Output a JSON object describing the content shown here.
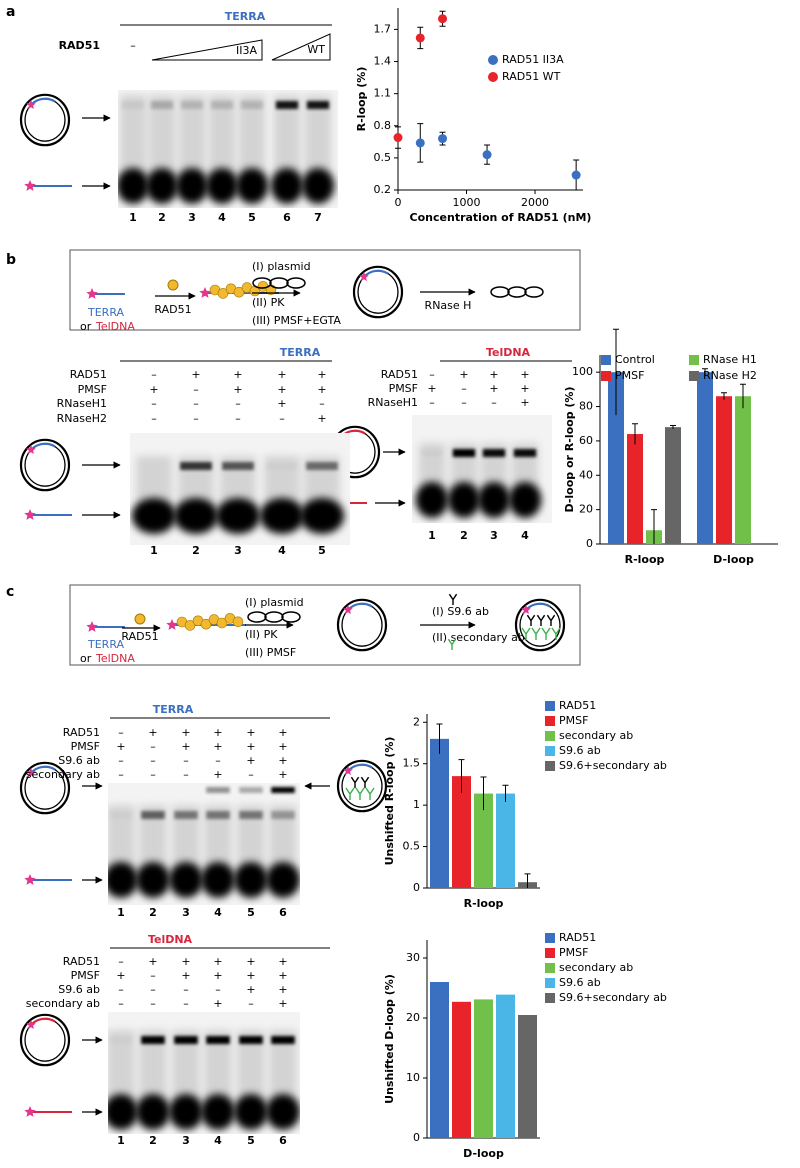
{
  "panel_labels": [
    "a",
    "b",
    "c"
  ],
  "schematic_b": {
    "terra": "TERRA",
    "or": "or",
    "teldna": "TelDNA",
    "rad51": "RAD51",
    "steps": [
      "(I) plasmid",
      "(II) PK",
      "(III) PMSF+EGTA"
    ],
    "rnase": "RNase H"
  },
  "schematic_c": {
    "terra": "TERRA",
    "or": "or",
    "teldna": "TelDNA",
    "rad51": "RAD51",
    "steps": [
      "(I) plasmid",
      "(II) PK",
      "(III) PMSF"
    ],
    "ab_steps": [
      "(I) S9.6 ab",
      "(II) secondary ab"
    ]
  },
  "gels": [
    {
      "title": "TERRA",
      "title_color": "#3b6fc0",
      "rows": [
        {
          "label": "RAD51",
          "signs": [
            "–"
          ]
        }
      ],
      "ramps": [
        "II3A",
        "WT"
      ],
      "lanes": [
        1,
        2,
        3,
        4,
        5,
        6,
        7
      ]
    },
    {
      "title": "TERRA",
      "title_color": "#3b6fc0",
      "rows": [
        {
          "label": "RAD51",
          "signs": [
            "–",
            "+",
            "+",
            "+",
            "+"
          ]
        },
        {
          "label": "PMSF",
          "signs": [
            "+",
            "–",
            "+",
            "+",
            "+"
          ]
        },
        {
          "label": "RNaseH1",
          "signs": [
            "–",
            "–",
            "–",
            "+",
            "–"
          ]
        },
        {
          "label": "RNaseH2",
          "signs": [
            "–",
            "–",
            "–",
            "–",
            "+"
          ]
        }
      ],
      "lanes": [
        1,
        2,
        3,
        4,
        5
      ]
    },
    {
      "title": "TelDNA",
      "title_color": "#d7263d",
      "rows": [
        {
          "label": "RAD51",
          "signs": [
            "–",
            "+",
            "+",
            "+"
          ]
        },
        {
          "label": "PMSF",
          "signs": [
            "+",
            "–",
            "+",
            "+"
          ]
        },
        {
          "label": "RNaseH1",
          "signs": [
            "–",
            "–",
            "–",
            "+"
          ]
        }
      ],
      "lanes": [
        1,
        2,
        3,
        4
      ]
    },
    {
      "title": "TERRA",
      "title_color": "#3b6fc0",
      "rows": [
        {
          "label": "RAD51",
          "signs": [
            "–",
            "+",
            "+",
            "+",
            "+",
            "+"
          ]
        },
        {
          "label": "PMSF",
          "signs": [
            "+",
            "–",
            "+",
            "+",
            "+",
            "+"
          ]
        },
        {
          "label": "S9.6 ab",
          "signs": [
            "–",
            "–",
            "–",
            "–",
            "+",
            "+"
          ]
        },
        {
          "label": "secondary ab",
          "signs": [
            "–",
            "–",
            "–",
            "+",
            "–",
            "+"
          ]
        }
      ],
      "lanes": [
        1,
        2,
        3,
        4,
        5,
        6
      ]
    },
    {
      "title": "TelDNA",
      "title_color": "#d7263d",
      "rows": [
        {
          "label": "RAD51",
          "signs": [
            "–",
            "+",
            "+",
            "+",
            "+",
            "+"
          ]
        },
        {
          "label": "PMSF",
          "signs": [
            "+",
            "–",
            "+",
            "+",
            "+",
            "+"
          ]
        },
        {
          "label": "S9.6 ab",
          "signs": [
            "–",
            "–",
            "–",
            "–",
            "+",
            "+"
          ]
        },
        {
          "label": "secondary ab",
          "signs": [
            "–",
            "–",
            "–",
            "+",
            "–",
            "+"
          ]
        }
      ],
      "lanes": [
        1,
        2,
        3,
        4,
        5,
        6
      ]
    }
  ],
  "chart_data": [
    {
      "type": "scatter",
      "xlabel": "Concentration of RAD51 (nM)",
      "ylabel": "R-loop (%)",
      "xlim": [
        0,
        2700
      ],
      "xticks": [
        0,
        1000,
        2000
      ],
      "ylim": [
        0.2,
        1.9
      ],
      "yticks": [
        0.2,
        0.5,
        0.8,
        1.1,
        1.4,
        1.7
      ],
      "legend": "upper right",
      "series": [
        {
          "name": "RAD51 II3A",
          "color": "#3b6fc0",
          "x": [
            325,
            650,
            1300,
            2600
          ],
          "values": [
            0.64,
            0.68,
            0.53,
            0.34
          ],
          "errors": [
            0.18,
            0.06,
            0.09,
            0.14
          ]
        },
        {
          "name": "RAD51 WT",
          "color": "#e8232a",
          "x": [
            0,
            325,
            650
          ],
          "values": [
            0.69,
            1.62,
            1.8
          ],
          "errors": [
            0.1,
            0.1,
            0.07
          ]
        }
      ]
    },
    {
      "type": "bar",
      "categories": [
        "R-loop",
        "D-loop"
      ],
      "ylabel": "D-loop or R-loop (%)",
      "ylim": [
        0,
        110
      ],
      "yticks": [
        0,
        20,
        40,
        60,
        80,
        100
      ],
      "legend": "top",
      "series": [
        {
          "name": "Control",
          "color": "#3b6fc0",
          "values": [
            100,
            100
          ],
          "errors": [
            25,
            2
          ]
        },
        {
          "name": "PMSF",
          "color": "#e8232a",
          "values": [
            64,
            86
          ],
          "errors": [
            6,
            2
          ]
        },
        {
          "name": "RNase H1",
          "color": "#70c04a",
          "values": [
            8,
            86
          ],
          "errors": [
            12,
            7
          ]
        },
        {
          "name": "RNase H2",
          "color": "#666666",
          "values": [
            68,
            null
          ],
          "errors": [
            1,
            null
          ]
        }
      ]
    },
    {
      "type": "bar",
      "categories": [
        "R-loop"
      ],
      "ylabel": "Unshifted R-loop (%)",
      "ylim": [
        0,
        2.1
      ],
      "yticks": [
        0,
        0.5,
        1,
        1.5,
        2
      ],
      "legend": "right",
      "series": [
        {
          "name": "RAD51",
          "color": "#3b6fc0",
          "values": [
            1.8
          ],
          "errors": [
            0.18
          ]
        },
        {
          "name": "PMSF",
          "color": "#e8232a",
          "values": [
            1.35
          ],
          "errors": [
            0.2
          ]
        },
        {
          "name": "secondary ab",
          "color": "#70c04a",
          "values": [
            1.14
          ],
          "errors": [
            0.2
          ]
        },
        {
          "name": "S9.6 ab",
          "color": "#4ab6e8",
          "values": [
            1.14
          ],
          "errors": [
            0.1
          ]
        },
        {
          "name": "S9.6+secondary ab",
          "color": "#666666",
          "values": [
            0.07
          ],
          "errors": [
            0.1
          ]
        }
      ]
    },
    {
      "type": "bar",
      "categories": [
        "D-loop"
      ],
      "ylabel": "Unshifted D-loop (%)",
      "ylim": [
        0,
        33
      ],
      "yticks": [
        0,
        10,
        20,
        30
      ],
      "legend": "right",
      "series": [
        {
          "name": "RAD51",
          "color": "#3b6fc0",
          "values": [
            26
          ]
        },
        {
          "name": "PMSF",
          "color": "#e8232a",
          "values": [
            22.7
          ]
        },
        {
          "name": "secondary ab",
          "color": "#70c04a",
          "values": [
            23.1
          ]
        },
        {
          "name": "S9.6 ab",
          "color": "#4ab6e8",
          "values": [
            23.9
          ]
        },
        {
          "name": "S9.6+secondary ab",
          "color": "#666666",
          "values": [
            20.5
          ]
        }
      ]
    }
  ]
}
